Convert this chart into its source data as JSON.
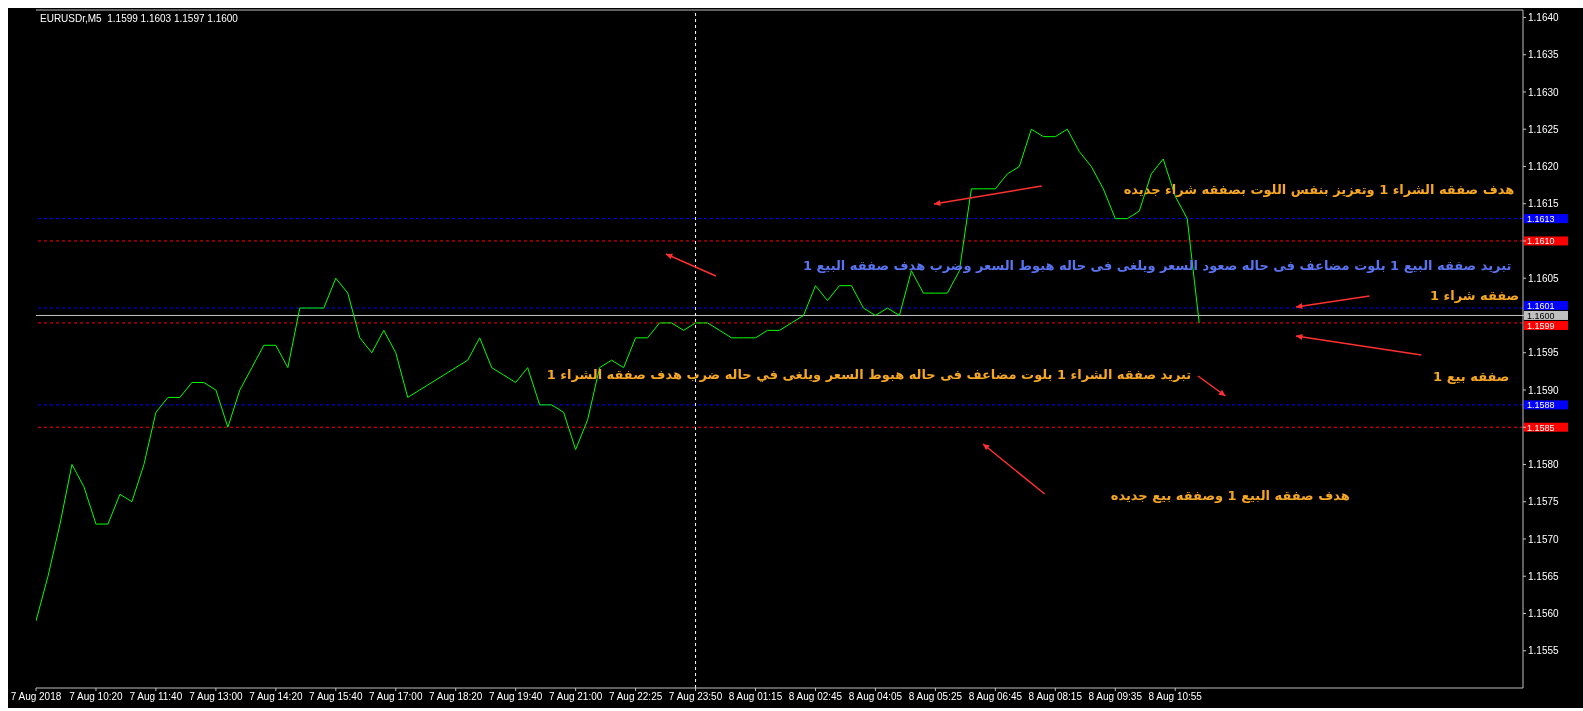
{
  "chart_data": {
    "type": "line",
    "title": "EURUSDr,M5  1.1599 1.1603 1.1597 1.1600",
    "categories": [
      "7 Aug 2018",
      null,
      null,
      null,
      null,
      "7 Aug 10:20",
      null,
      null,
      null,
      null,
      "7 Aug 11:40",
      null,
      null,
      null,
      null,
      "7 Aug 13:00",
      null,
      null,
      null,
      null,
      "7 Aug 14:20",
      null,
      null,
      null,
      null,
      "7 Aug 15:40",
      null,
      null,
      null,
      null,
      "7 Aug 17:00",
      null,
      null,
      null,
      null,
      "7 Aug 18:20",
      null,
      null,
      null,
      null,
      "7 Aug 19:40",
      null,
      null,
      null,
      null,
      "7 Aug 21:00",
      null,
      null,
      null,
      null,
      "7 Aug 22:25",
      null,
      null,
      null,
      null,
      "7 Aug 23:50",
      null,
      null,
      null,
      null,
      "8 Aug 01:15",
      null,
      null,
      null,
      null,
      "8 Aug 02:45",
      null,
      null,
      null,
      null,
      "8 Aug 04:05",
      null,
      null,
      null,
      null,
      "8 Aug 05:25",
      null,
      null,
      null,
      null,
      "8 Aug 06:45",
      null,
      null,
      null,
      null,
      "8 Aug 08:15",
      null,
      null,
      null,
      null,
      "8 Aug 09:35",
      null,
      null,
      null,
      null,
      "8 Aug 10:55",
      null,
      null,
      null,
      null,
      null,
      null,
      null,
      null,
      null,
      null,
      null,
      null,
      null,
      null,
      null,
      null,
      null,
      null,
      null,
      null,
      null,
      null,
      null,
      null,
      null,
      null,
      null,
      null,
      null
    ],
    "series": [
      {
        "color": "#00ff00",
        "values": [
          1.1559,
          1.1565,
          1.1572,
          1.158,
          1.1577,
          1.1572,
          1.1572,
          1.1576,
          1.1575,
          1.158,
          1.1587,
          1.1589,
          1.1589,
          1.1591,
          1.1591,
          1.159,
          1.1585,
          1.159,
          1.1593,
          1.1596,
          1.1596,
          1.1593,
          1.1601,
          1.1601,
          1.1601,
          1.1605,
          1.1603,
          1.1597,
          1.1595,
          1.1598,
          1.1595,
          1.1589,
          1.159,
          1.1591,
          1.1592,
          1.1593,
          1.1594,
          1.1597,
          1.1593,
          1.1592,
          1.1591,
          1.1593,
          1.1588,
          1.1588,
          1.1587,
          1.1582,
          1.1586,
          1.1593,
          1.1594,
          1.1593,
          1.1597,
          1.1597,
          1.1599,
          1.1599,
          1.1598,
          1.1599,
          1.1599,
          1.1598,
          1.1597,
          1.1597,
          1.1597,
          1.1598,
          1.1598,
          1.1599,
          1.16,
          1.1604,
          1.1602,
          1.1604,
          1.1604,
          1.1601,
          1.16,
          1.1601,
          1.16,
          1.1606,
          1.1603,
          1.1603,
          1.1603,
          1.1606,
          1.1617,
          1.1617,
          1.1617,
          1.1619,
          1.162,
          1.1625,
          1.1624,
          1.1624,
          1.1625,
          1.1622,
          1.162,
          1.1617,
          1.1613,
          1.1613,
          1.1614,
          1.1619,
          1.1621,
          1.1616,
          1.1613,
          1.1599,
          null,
          null,
          null,
          null,
          null,
          null,
          null,
          null,
          null,
          null,
          null,
          null,
          null,
          null,
          null,
          null,
          null,
          null,
          null,
          null,
          null,
          null,
          null,
          null,
          null,
          null,
          null
        ]
      }
    ],
    "ylim": [
      1.155,
      1.1641
    ],
    "yticks": [
      {
        "value": 1.1555,
        "label": "1.1555"
      },
      {
        "value": 1.156,
        "label": "1.1560"
      },
      {
        "value": 1.1565,
        "label": "1.1565"
      },
      {
        "value": 1.157,
        "label": "1.1570"
      },
      {
        "value": 1.1575,
        "label": "1.1575"
      },
      {
        "value": 1.158,
        "label": "1.1580"
      },
      {
        "value": 1.1585,
        "label": null
      },
      {
        "value": 1.159,
        "label": "1.1590"
      },
      {
        "value": 1.1595,
        "label": "1.1595"
      },
      {
        "value": 1.16,
        "label": null
      },
      {
        "value": 1.1605,
        "label": "1.1605"
      },
      {
        "value": 1.161,
        "label": null
      },
      {
        "value": 1.1615,
        "label": "1.1615"
      },
      {
        "value": 1.162,
        "label": "1.1620"
      },
      {
        "value": 1.1625,
        "label": "1.1625"
      },
      {
        "value": 1.163,
        "label": "1.1630"
      },
      {
        "value": 1.1635,
        "label": "1.1635"
      },
      {
        "value": 1.164,
        "label": "1.1640"
      }
    ],
    "ref_lines": [
      {
        "axis": "y",
        "value": 1.1613,
        "label": "1.1613",
        "color": "#0000ff",
        "line_style": "dashed"
      },
      {
        "axis": "y",
        "value": 1.161,
        "label": "1.1610",
        "color": "#ff0000",
        "line_style": "dashed"
      },
      {
        "axis": "y",
        "value": 1.1601,
        "label": "1.1601",
        "color": "#0000ff",
        "line_style": "dashed"
      },
      {
        "axis": "y",
        "value": 1.16,
        "label": "1.1600",
        "color": "#c0c0c0",
        "line_style": "solid"
      },
      {
        "axis": "y",
        "value": 1.1599,
        "label": "1.1599",
        "color": "#ff0000",
        "line_style": "dashed"
      },
      {
        "axis": "y",
        "value": 1.1588,
        "label": "1.1588",
        "color": "#0000ff",
        "line_style": "dashed"
      },
      {
        "axis": "y",
        "value": 1.1585,
        "label": "1.1585",
        "color": "#ff0000",
        "line_style": "dashed"
      },
      {
        "axis": "x",
        "value": "7 Aug 23:50",
        "color": "#ffffff",
        "line_style": "dashed"
      }
    ],
    "annotations": [
      "هدف صفقه الشراء 1 وتعزيز بنفس اللوت بصفقه شراء جديده",
      "تبريد صفقه البيع 1 بلوت مضاعف فى حاله صعود السعر ويلغى فى حاله هبوط السعر وضرب هدف صفقه البيع 1",
      "صفقه شراء 1",
      "صفقه بيع 1",
      "تبريد صفقه الشراء 1 بلوت مضاعف فى حاله هبوط السعر ويلغى في حاله ضرب هدف صفقه الشراء 1",
      "هدف صفقه البيع 1 وصفقه بيع جديده"
    ],
    "grid": false,
    "legend": false,
    "marker": "none",
    "line_style": "solid"
  }
}
